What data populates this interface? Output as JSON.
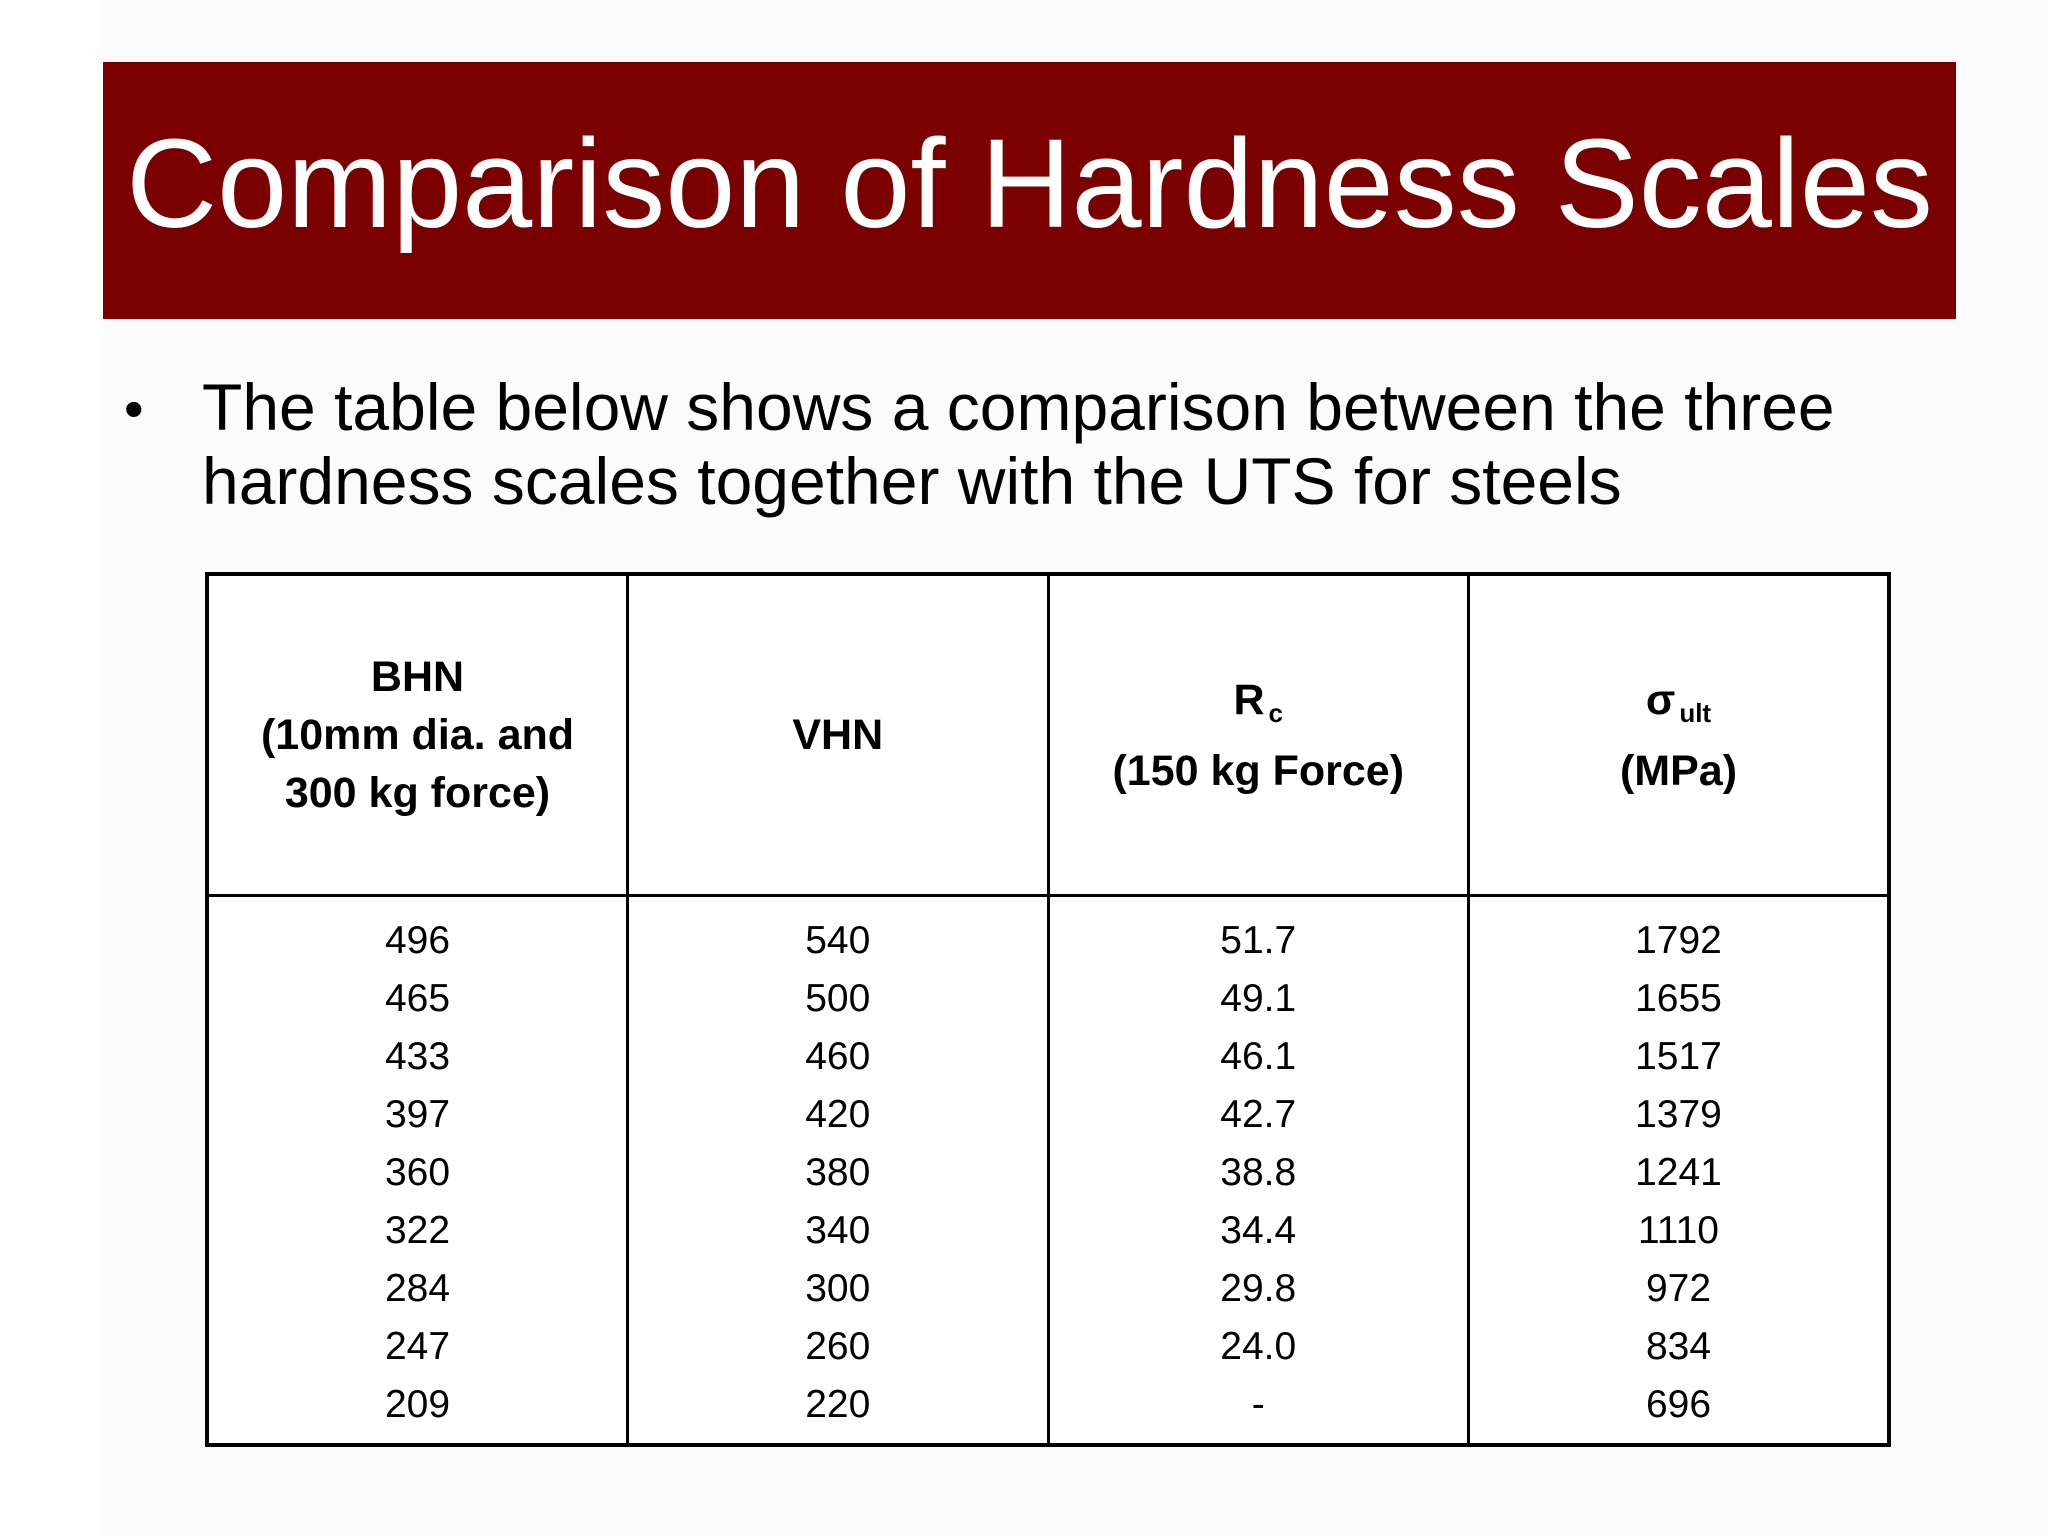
{
  "slide": {
    "title": "Comparison of Hardness Scales",
    "bullet": "The table below shows a comparison between the three hardness scales together with the UTS for steels",
    "colors": {
      "title_bar": "#7b0000",
      "title_text": "#ffffff"
    }
  },
  "table": {
    "headers": {
      "bhn": {
        "line1": "BHN",
        "line2": "(10mm dia. and",
        "line3": "300 kg force)"
      },
      "vhn": {
        "line1": "VHN"
      },
      "rc": {
        "symbol": "R",
        "subscript": "c",
        "line2": "(150 kg Force)"
      },
      "uts": {
        "symbol": "σ",
        "subscript": "ult",
        "line2": "(MPa)"
      }
    },
    "rows": [
      [
        "496",
        "540",
        "51.7",
        "1792"
      ],
      [
        "465",
        "500",
        "49.1",
        "1655"
      ],
      [
        "433",
        "460",
        "46.1",
        "1517"
      ],
      [
        "397",
        "420",
        "42.7",
        "1379"
      ],
      [
        "360",
        "380",
        "38.8",
        "1241"
      ],
      [
        "322",
        "340",
        "34.4",
        "1110"
      ],
      [
        "284",
        "300",
        "29.8",
        "972"
      ],
      [
        "247",
        "260",
        "24.0",
        "834"
      ],
      [
        "209",
        "220",
        "-",
        "696"
      ]
    ]
  }
}
